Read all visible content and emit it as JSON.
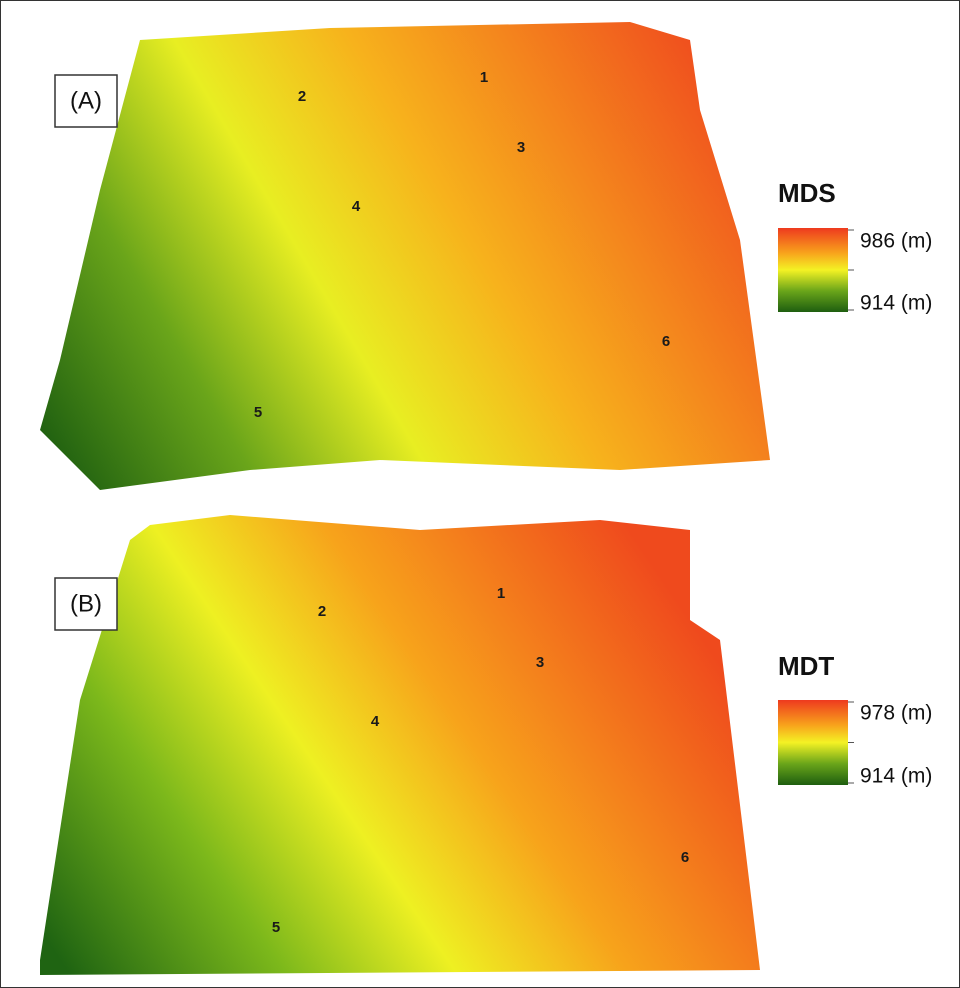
{
  "panels": [
    {
      "label": "(A)",
      "legend": {
        "title": "MDS",
        "max": "986 (m)",
        "min": "914 (m)"
      },
      "points": [
        "1",
        "2",
        "3",
        "4",
        "5",
        "6"
      ]
    },
    {
      "label": "(B)",
      "legend": {
        "title": "MDT",
        "max": "978 (m)",
        "min": "914 (m)"
      },
      "points": [
        "1",
        "2",
        "3",
        "4",
        "5",
        "6"
      ]
    }
  ]
}
